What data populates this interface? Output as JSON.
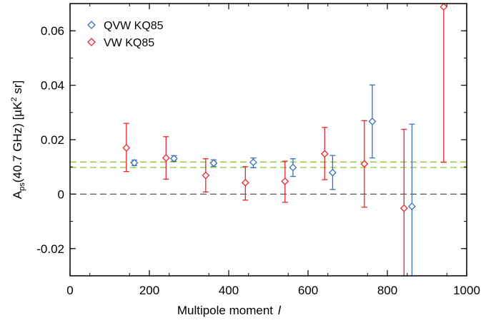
{
  "chart_data": {
    "type": "scatter",
    "xlabel": "Multipole moment",
    "xlabel_symbol": "l",
    "ylabel": {
      "main": "A",
      "sub": "ps",
      "rest": "(40.7 GHz) [µK",
      "sup": "2",
      "end": " sr]"
    },
    "xlim": [
      0,
      1000
    ],
    "ylim": [
      -0.03,
      0.07
    ],
    "x_ticks": [
      0,
      200,
      400,
      600,
      800,
      1000
    ],
    "x_tick_labels": [
      "0",
      "200",
      "400",
      "600",
      "800",
      "1000"
    ],
    "y_ticks": [
      -0.02,
      0,
      0.02,
      0.04,
      0.06
    ],
    "y_tick_labels": [
      "-0.02",
      "0",
      "0.02",
      "0.04",
      "0.06"
    ],
    "grid": false,
    "legend_position": "top-left",
    "series": [
      {
        "name": "QVW KQ85",
        "color": "#3b6fb6",
        "marker": "diamond-open",
        "points": [
          {
            "x": 162,
            "y": 0.0115,
            "err_lo": 0.0105,
            "err_hi": 0.0125
          },
          {
            "x": 262,
            "y": 0.0131,
            "err_lo": 0.0121,
            "err_hi": 0.0141
          },
          {
            "x": 362,
            "y": 0.0114,
            "err_lo": 0.0102,
            "err_hi": 0.0126
          },
          {
            "x": 462,
            "y": 0.0117,
            "err_lo": 0.0097,
            "err_hi": 0.0133
          },
          {
            "x": 562,
            "y": 0.0098,
            "err_lo": 0.0065,
            "err_hi": 0.013
          },
          {
            "x": 662,
            "y": 0.0079,
            "err_lo": 0.0017,
            "err_hi": 0.0142
          },
          {
            "x": 762,
            "y": 0.0267,
            "err_lo": 0.0133,
            "err_hi": 0.0401
          },
          {
            "x": 862,
            "y": -0.0045,
            "err_lo": -0.033,
            "err_hi": 0.0257
          }
        ]
      },
      {
        "name": "VW KQ85",
        "color": "#e8262c",
        "marker": "diamond-open",
        "points": [
          {
            "x": 142,
            "y": 0.017,
            "err_lo": 0.0083,
            "err_hi": 0.026
          },
          {
            "x": 242,
            "y": 0.0133,
            "err_lo": 0.0055,
            "err_hi": 0.0211
          },
          {
            "x": 342,
            "y": 0.0069,
            "err_lo": 0.0008,
            "err_hi": 0.013
          },
          {
            "x": 442,
            "y": 0.0042,
            "err_lo": -0.0022,
            "err_hi": 0.0101
          },
          {
            "x": 542,
            "y": 0.0047,
            "err_lo": -0.003,
            "err_hi": 0.0121
          },
          {
            "x": 642,
            "y": 0.0148,
            "err_lo": 0.0053,
            "err_hi": 0.0245
          },
          {
            "x": 742,
            "y": 0.0111,
            "err_lo": -0.0048,
            "err_hi": 0.027
          },
          {
            "x": 842,
            "y": -0.0052,
            "err_lo": -0.033,
            "err_hi": 0.0238
          },
          {
            "x": 942,
            "y": 0.0688,
            "err_lo": 0.0117,
            "err_hi": 0.075
          }
        ]
      }
    ],
    "reference_lines": [
      {
        "y": 0,
        "color": "#555555",
        "style": "dashed"
      },
      {
        "y": 0.0098,
        "color": "#8cc63f",
        "style": "dashed"
      },
      {
        "y": 0.0118,
        "color": "#8cc63f",
        "style": "dashed"
      }
    ]
  }
}
